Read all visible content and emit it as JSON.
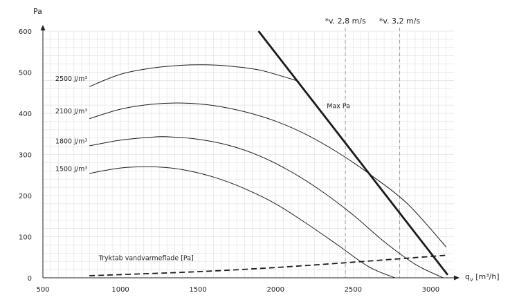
{
  "chart_data": {
    "type": "line",
    "ylabel": "Pa",
    "xlabel": "q_v [m³/h]",
    "xlabel_main": "q",
    "xlabel_sub": "v",
    "xlabel_rest": " [m³/h]",
    "xlim": [
      500,
      3150
    ],
    "ylim": [
      0,
      600
    ],
    "x_ticks": [
      500,
      1000,
      1500,
      2000,
      2500,
      3000
    ],
    "y_ticks": [
      0,
      100,
      200,
      300,
      400,
      500,
      600
    ],
    "grid": true,
    "series": [
      {
        "name": "2500 J/m³",
        "style": "thin",
        "x": [
          800,
          1000,
          1200,
          1400,
          1550,
          1700,
          1900,
          2150
        ],
        "y": [
          465,
          495,
          510,
          517,
          518,
          515,
          505,
          478
        ]
      },
      {
        "name": "2100 J/m³",
        "style": "thin",
        "x": [
          800,
          1000,
          1200,
          1400,
          1600,
          1800,
          2000,
          2200,
          2400,
          2600,
          2850,
          3100
        ],
        "y": [
          387,
          410,
          422,
          425,
          419,
          404,
          381,
          348,
          305,
          254,
          180,
          75
        ]
      },
      {
        "name": "1800 J/m³",
        "style": "thin",
        "x": [
          800,
          1000,
          1200,
          1300,
          1500,
          1700,
          1900,
          2100,
          2300,
          2500,
          2700,
          2900,
          3080
        ],
        "y": [
          321,
          335,
          342,
          343,
          337,
          322,
          296,
          258,
          210,
          153,
          88,
          33,
          0
        ]
      },
      {
        "name": "1500 J/m³",
        "style": "thin",
        "x": [
          800,
          1000,
          1200,
          1400,
          1600,
          1800,
          2000,
          2200,
          2400,
          2600,
          2770
        ],
        "y": [
          254,
          267,
          270,
          263,
          245,
          217,
          180,
          132,
          80,
          27,
          0
        ]
      },
      {
        "name": "Max Pa",
        "style": "thick",
        "x": [
          1890,
          3110
        ],
        "y": [
          600,
          7
        ]
      },
      {
        "name": "Tryktab vandvarmeflade [Pa]",
        "style": "dashed",
        "x": [
          800,
          1500,
          2000,
          2500,
          3000,
          3100
        ],
        "y": [
          5,
          15,
          25,
          38,
          52,
          55
        ]
      }
    ],
    "reference_lines": [
      {
        "x": 2450,
        "label": "*v. 2,8 m/s"
      },
      {
        "x": 2800,
        "label": "*v. 3,2 m/s"
      }
    ],
    "annotations": [
      {
        "text": "2500 J/m³",
        "x": 580,
        "y": 484
      },
      {
        "text": "2100 J/m³",
        "x": 580,
        "y": 405
      },
      {
        "text": "1800 J/m³",
        "x": 580,
        "y": 332
      },
      {
        "text": "1500 J/m³",
        "x": 580,
        "y": 265
      },
      {
        "text": "Max Pa",
        "x": 2330,
        "y": 418
      },
      {
        "text": "Tryktab vandvarmeflade [Pa]",
        "x": 860,
        "y": 48
      }
    ]
  }
}
